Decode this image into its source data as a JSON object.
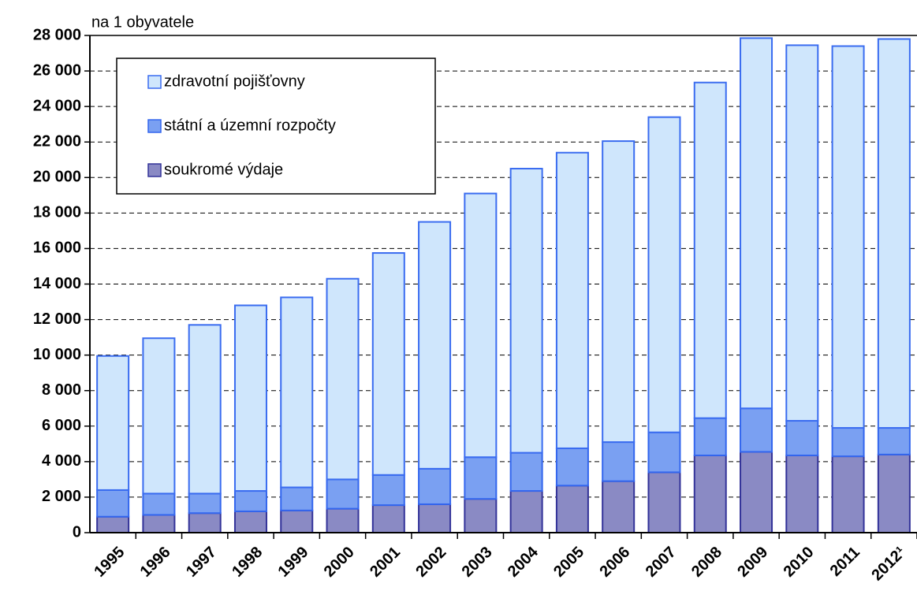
{
  "chart_data": {
    "type": "stacked_bar",
    "y_label": "na 1 obyvatele",
    "categories": [
      "1995",
      "1996",
      "1997",
      "1998",
      "1999",
      "2000",
      "2001",
      "2002",
      "2003",
      "2004",
      "2005",
      "2006",
      "2007",
      "2008",
      "2009",
      "2010",
      "2011",
      "2012¹"
    ],
    "series": [
      {
        "name": "soukromé výdaje",
        "color": "#8a8ac4",
        "values": [
          900,
          1000,
          1100,
          1200,
          1250,
          1350,
          1550,
          1600,
          1900,
          2350,
          2650,
          2900,
          3400,
          4350,
          4550,
          4350,
          4300,
          4400
        ]
      },
      {
        "name": "státní a územní rozpočty",
        "color": "#7aa0f2",
        "values": [
          1500,
          1200,
          1100,
          1150,
          1300,
          1650,
          1700,
          2000,
          2350,
          2150,
          2100,
          2200,
          2250,
          2100,
          2450,
          1950,
          1600,
          1500
        ]
      },
      {
        "name": "zdravotní pojišťovny",
        "color": "#cfe6fc",
        "values": [
          7550,
          8750,
          9500,
          10450,
          10700,
          11300,
          12500,
          13900,
          14850,
          16000,
          16650,
          16950,
          17750,
          18900,
          20850,
          21150,
          21500,
          21900
        ]
      }
    ],
    "ylim": [
      0,
      28000
    ],
    "yticks": [
      0,
      {
        "value": 2000,
        "label": "2 000"
      },
      {
        "value": 4000,
        "label": "4 000"
      },
      {
        "value": 6000,
        "label": "6 000"
      },
      {
        "value": 8000,
        "label": "8 000"
      },
      {
        "value": 10000,
        "label": "10 000"
      },
      {
        "value": 12000,
        "label": "12 000"
      },
      {
        "value": 14000,
        "label": "14 000"
      },
      {
        "value": 16000,
        "label": "16 000"
      },
      {
        "value": 18000,
        "label": "18 000"
      },
      {
        "value": 20000,
        "label": "20 000"
      },
      {
        "value": 22000,
        "label": "22 000"
      },
      {
        "value": 24000,
        "label": "24 000"
      },
      {
        "value": 26000,
        "label": "26 000"
      },
      {
        "value": 28000,
        "label": "28 000"
      }
    ],
    "grid": true,
    "legend": "upper left"
  }
}
